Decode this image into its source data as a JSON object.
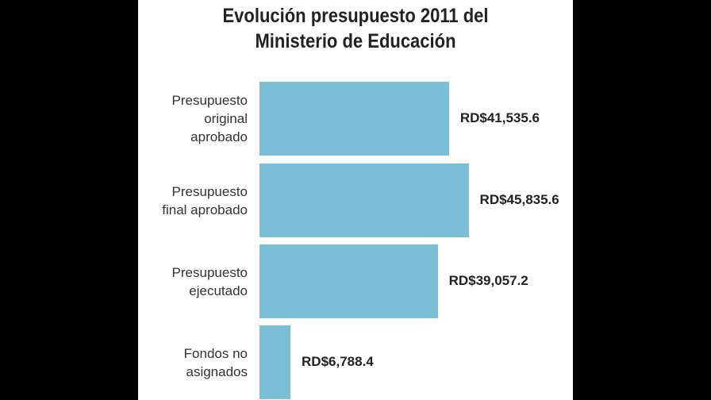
{
  "chart_data": {
    "type": "bar",
    "orientation": "horizontal",
    "title": "Evolución presupuesto 2011 del Ministerio de Educación",
    "title_lines": [
      "Evolución presupuesto 2011 del",
      "Ministerio de Educación"
    ],
    "categories": [
      "Presupuesto\noriginal\naprobado",
      "Presupuesto\nfinal aprobado",
      "Presupuesto\nejecutado",
      "Fondos no\nasignados"
    ],
    "values": [
      41535.6,
      45835.6,
      39057.2,
      6788.4
    ],
    "data_labels": [
      "RD$41,535.6",
      "RD$45,835.6",
      "RD$39,057.2",
      "RD$6,788.4"
    ],
    "xlim": [
      0,
      95000
    ],
    "grid": false,
    "bar_color": "#7bbfd6"
  }
}
